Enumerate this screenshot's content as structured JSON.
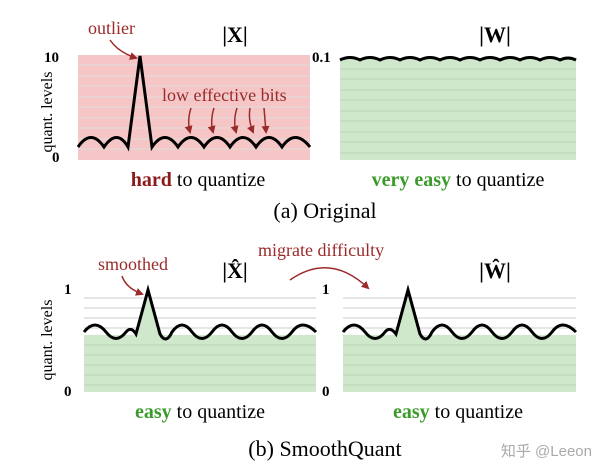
{
  "top": {
    "caption": "(a) Original",
    "left": {
      "title_text": "|X|",
      "y_axis_label": "quant. levels",
      "y_max_label": "10",
      "y_min_label": "0",
      "annotation_outlier": "outlier",
      "annotation_bits": "low effective bits",
      "difficulty_word": "hard",
      "difficulty_rest": " to quantize",
      "fill_color": "#f6c6c6",
      "difficulty_color": "#8e1b1b"
    },
    "right": {
      "title_text": "|W|",
      "y_max_label": "0.1",
      "difficulty_word": "very easy",
      "difficulty_rest": " to quantize",
      "fill_color": "#cfe8cb",
      "difficulty_color": "#3a9a2a"
    }
  },
  "bottom": {
    "caption": "(b) SmoothQuant",
    "migrate_label": "migrate difficulty",
    "left": {
      "title_text": "|X̂|",
      "y_axis_label": "quant. levels",
      "y_max_label": "1",
      "y_min_label": "0",
      "annotation_smoothed": "smoothed",
      "difficulty_word": "easy",
      "difficulty_rest": " to quantize",
      "fill_color": "#cfe8cb",
      "difficulty_color": "#3a9a2a"
    },
    "right": {
      "title_text": "|Ŵ|",
      "y_max_label": "1",
      "y_min_label": "0",
      "difficulty_word": "easy",
      "difficulty_rest": " to quantize",
      "fill_color": "#cfe8cb",
      "difficulty_color": "#3a9a2a"
    }
  },
  "watermark": "知乎 @Leeon",
  "annotation_color": "#9b2a2a"
}
